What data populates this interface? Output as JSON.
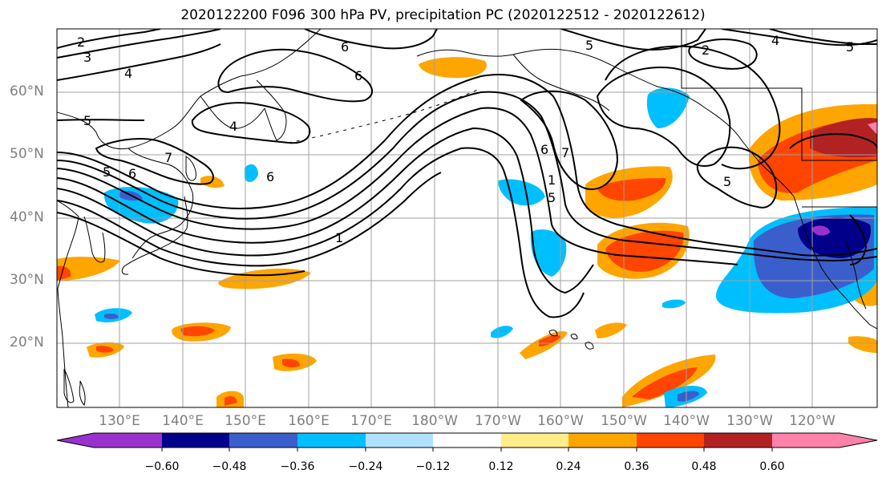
{
  "title": "2020122200 F096 300 hPa PV, precipitation PC (2020122512 - 2020122612)",
  "map": {
    "lat_labels": [
      "60°N",
      "50°N",
      "40°N",
      "30°N",
      "20°N"
    ],
    "lon_labels": [
      "130°E",
      "140°E",
      "150°E",
      "160°E",
      "170°E",
      "180°W",
      "170°W",
      "160°W",
      "150°W",
      "140°W",
      "130°W",
      "120°W"
    ],
    "contour_labels": [
      "2",
      "3",
      "4",
      "5",
      "6",
      "7",
      "1",
      "5",
      "6",
      "4",
      "6",
      "6",
      "7",
      "6",
      "5",
      "4",
      "2",
      "5",
      "5",
      "1",
      "5"
    ]
  },
  "colorbar": {
    "tick_labels": [
      "−0.60",
      "−0.48",
      "−0.36",
      "−0.24",
      "−0.12",
      "0.12",
      "0.24",
      "0.36",
      "0.48",
      "0.60"
    ],
    "colors": [
      "#9932cc",
      "#00008b",
      "#3a5fcd",
      "#00bfff",
      "#b0e2ff",
      "#ffffff",
      "#ffec8b",
      "#ffa500",
      "#ff4500",
      "#b22222",
      "#ff82ab"
    ]
  }
}
